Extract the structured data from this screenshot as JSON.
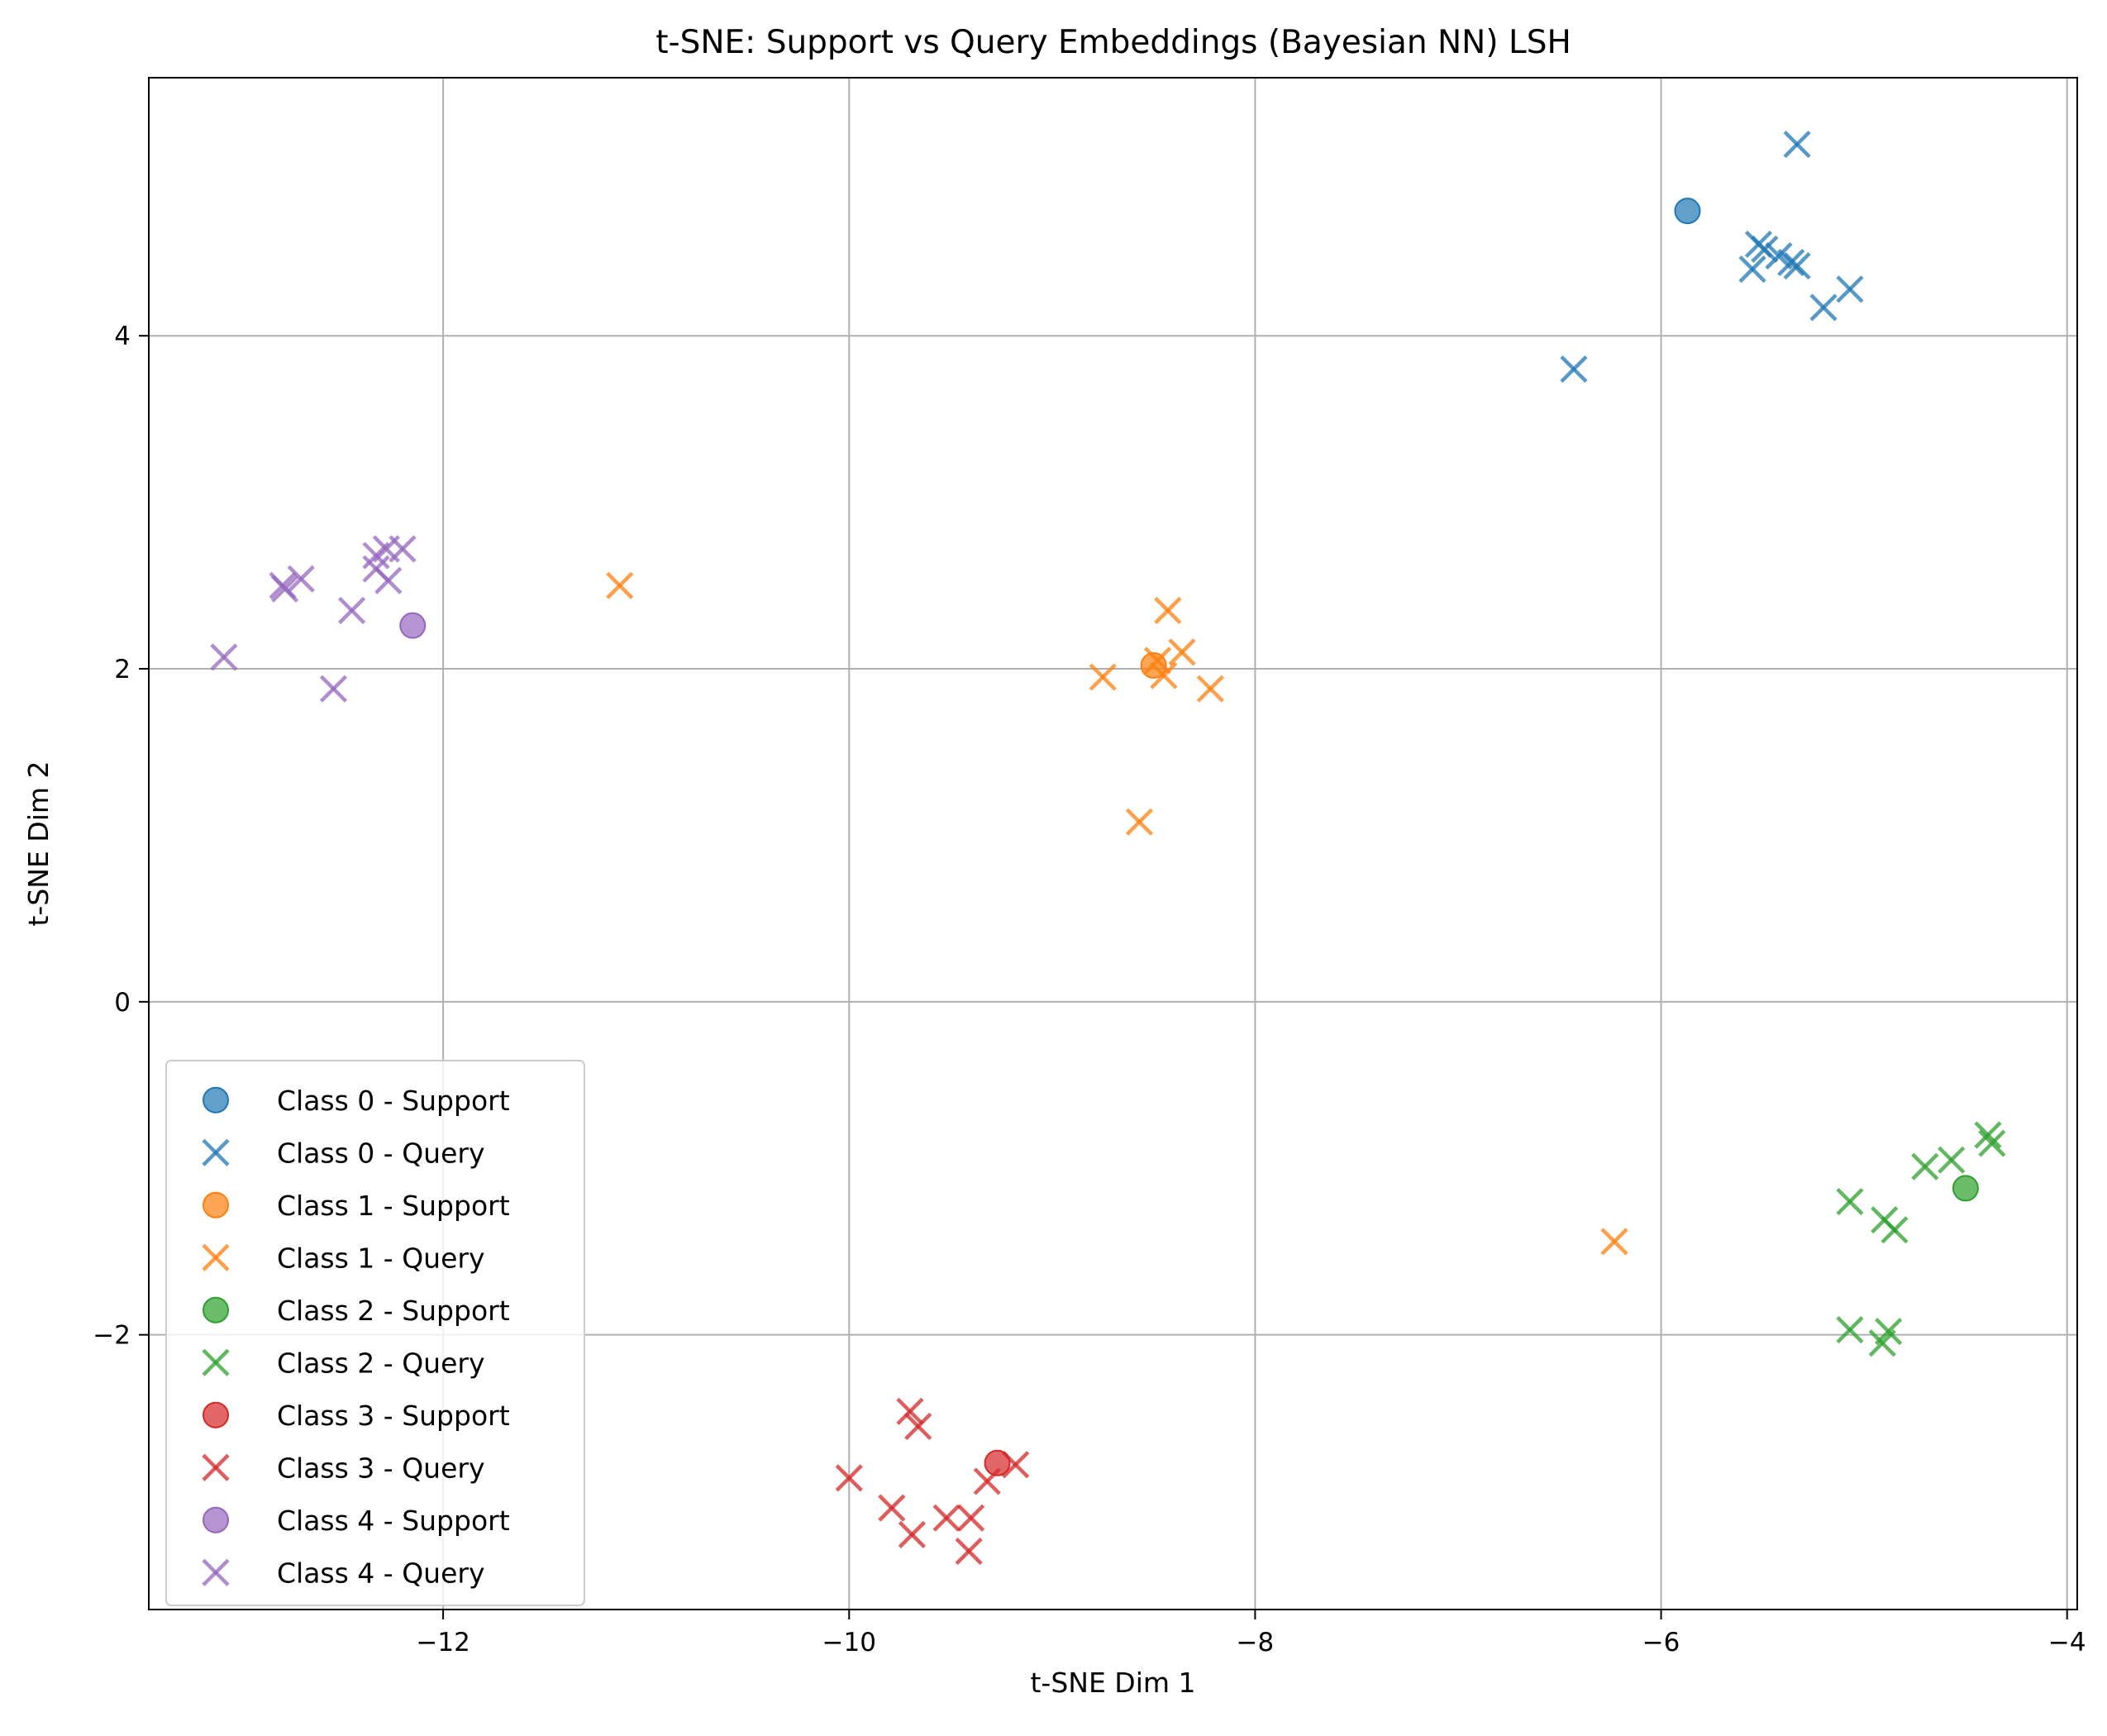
{
  "chart_data": {
    "type": "scatter",
    "title": "t-SNE: Support vs Query Embeddings (Bayesian NN) LSH",
    "xlabel": "t-SNE Dim 1",
    "ylabel": "t-SNE Dim 2",
    "xlim": [
      -13.45,
      -3.95
    ],
    "ylim": [
      -3.65,
      5.55
    ],
    "xticks": [
      -12,
      -10,
      -8,
      -6,
      -4
    ],
    "yticks": [
      -2,
      0,
      2,
      4
    ],
    "xtick_labels": [
      "−12",
      "−10",
      "−8",
      "−6",
      "−4"
    ],
    "ytick_labels": [
      "−2",
      "0",
      "2",
      "4"
    ],
    "grid": true,
    "legend_position": "lower-left",
    "series": [
      {
        "name": "Class 0 - Support",
        "marker": "circle",
        "color": "#1f77b4",
        "points": [
          [
            -5.87,
            4.75
          ]
        ]
      },
      {
        "name": "Class 0 - Query",
        "marker": "x",
        "color": "#1f77b4",
        "points": [
          [
            -5.33,
            5.15
          ],
          [
            -5.52,
            4.55
          ],
          [
            -5.49,
            4.52
          ],
          [
            -5.42,
            4.48
          ],
          [
            -5.36,
            4.44
          ],
          [
            -5.33,
            4.42
          ],
          [
            -5.55,
            4.4
          ],
          [
            -5.07,
            4.28
          ],
          [
            -5.2,
            4.17
          ],
          [
            -6.43,
            3.8
          ]
        ]
      },
      {
        "name": "Class 1 - Support",
        "marker": "circle",
        "color": "#ff7f0e",
        "points": [
          [
            -8.5,
            2.02
          ]
        ]
      },
      {
        "name": "Class 1 - Query",
        "marker": "x",
        "color": "#ff7f0e",
        "points": [
          [
            -11.13,
            2.5
          ],
          [
            -8.43,
            2.35
          ],
          [
            -8.36,
            2.1
          ],
          [
            -8.48,
            2.05
          ],
          [
            -8.45,
            1.96
          ],
          [
            -8.75,
            1.95
          ],
          [
            -8.22,
            1.88
          ],
          [
            -8.57,
            1.08
          ],
          [
            -6.23,
            -1.44
          ]
        ]
      },
      {
        "name": "Class 2 - Support",
        "marker": "circle",
        "color": "#2ca02c",
        "points": [
          [
            -4.5,
            -1.12
          ]
        ]
      },
      {
        "name": "Class 2 - Query",
        "marker": "x",
        "color": "#2ca02c",
        "points": [
          [
            -4.39,
            -0.8
          ],
          [
            -4.37,
            -0.85
          ],
          [
            -4.57,
            -0.95
          ],
          [
            -4.7,
            -0.99
          ],
          [
            -5.07,
            -1.2
          ],
          [
            -4.9,
            -1.31
          ],
          [
            -4.85,
            -1.37
          ],
          [
            -5.07,
            -1.97
          ],
          [
            -4.88,
            -1.98
          ],
          [
            -4.91,
            -2.05
          ]
        ]
      },
      {
        "name": "Class 3 - Support",
        "marker": "circle",
        "color": "#d62728",
        "points": [
          [
            -9.27,
            -2.77
          ]
        ]
      },
      {
        "name": "Class 3 - Query",
        "marker": "x",
        "color": "#d62728",
        "points": [
          [
            -9.7,
            -2.46
          ],
          [
            -9.66,
            -2.55
          ],
          [
            -9.18,
            -2.78
          ],
          [
            -9.32,
            -2.88
          ],
          [
            -10.0,
            -2.86
          ],
          [
            -9.79,
            -3.04
          ],
          [
            -9.52,
            -3.1
          ],
          [
            -9.4,
            -3.1
          ],
          [
            -9.69,
            -3.2
          ],
          [
            -9.41,
            -3.3
          ]
        ]
      },
      {
        "name": "Class 4 - Support",
        "marker": "circle",
        "color": "#9467bd",
        "points": [
          [
            -12.15,
            2.26
          ]
        ]
      },
      {
        "name": "Class 4 - Query",
        "marker": "x",
        "color": "#9467bd",
        "points": [
          [
            -12.2,
            2.72
          ],
          [
            -12.28,
            2.72
          ],
          [
            -12.33,
            2.68
          ],
          [
            -12.33,
            2.6
          ],
          [
            -12.27,
            2.53
          ],
          [
            -12.7,
            2.54
          ],
          [
            -12.79,
            2.5
          ],
          [
            -12.78,
            2.48
          ],
          [
            -12.45,
            2.35
          ],
          [
            -13.08,
            2.07
          ],
          [
            -12.54,
            1.88
          ]
        ]
      }
    ]
  }
}
